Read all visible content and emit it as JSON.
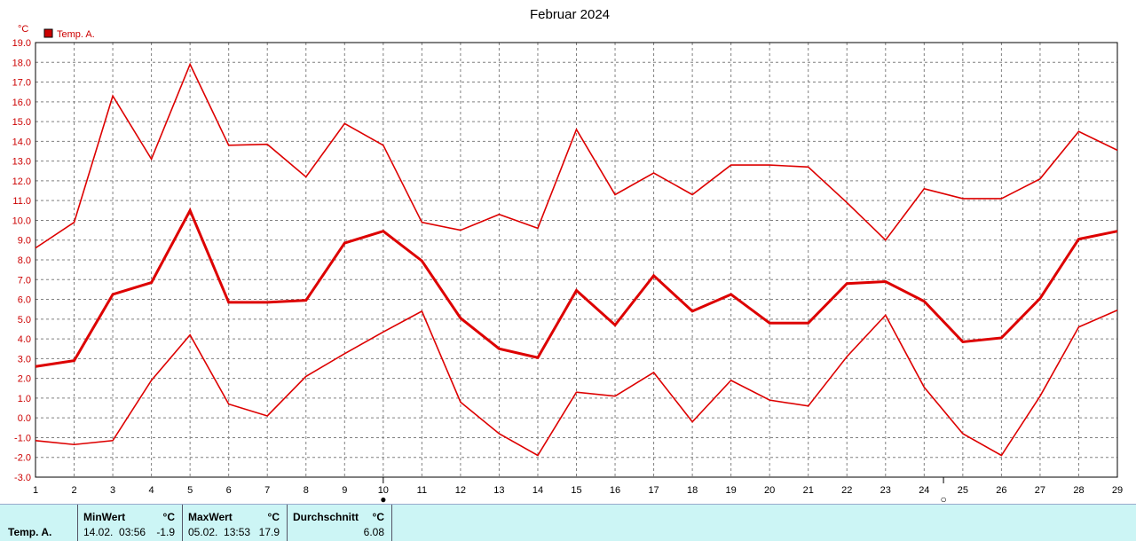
{
  "chart_data": {
    "type": "line",
    "title": "Februar 2024",
    "y_unit": "°C",
    "legend": [
      {
        "label": "Temp. A.",
        "color": "#cc0000"
      }
    ],
    "ylim": [
      -3.0,
      19.0
    ],
    "yticks": [
      "19.0",
      "18.0",
      "17.0",
      "16.0",
      "15.0",
      "14.0",
      "13.0",
      "12.0",
      "11.0",
      "10.0",
      "9.0",
      "8.0",
      "7.0",
      "6.0",
      "5.0",
      "4.0",
      "3.0",
      "2.0",
      "1.0",
      "0.0",
      "-1.0",
      "-2.0",
      "-3.0"
    ],
    "x": [
      1,
      2,
      3,
      4,
      5,
      6,
      7,
      8,
      9,
      10,
      11,
      12,
      13,
      14,
      15,
      16,
      17,
      18,
      19,
      20,
      21,
      22,
      23,
      24,
      25,
      26,
      27,
      28,
      29
    ],
    "grid": true,
    "moon_markers": [
      {
        "day": 10,
        "symbol": "●"
      },
      {
        "day": 24.5,
        "symbol": "○"
      }
    ],
    "series": [
      {
        "role": "max",
        "color": "#dd0000",
        "width": 1.6,
        "values": [
          8.6,
          9.9,
          16.3,
          13.1,
          17.9,
          13.8,
          13.85,
          12.2,
          14.9,
          13.8,
          9.9,
          9.5,
          10.3,
          9.6,
          14.6,
          11.3,
          12.4,
          11.3,
          12.8,
          12.8,
          12.7,
          10.9,
          9.0,
          11.6,
          11.1,
          11.1,
          12.1,
          14.5,
          13.55
        ]
      },
      {
        "role": "mean",
        "color": "#dd0000",
        "width": 3,
        "values": [
          2.6,
          2.9,
          6.25,
          6.85,
          10.5,
          5.85,
          5.85,
          5.95,
          8.85,
          9.45,
          7.95,
          5.05,
          3.5,
          3.05,
          6.45,
          4.7,
          7.2,
          5.4,
          6.25,
          4.8,
          4.8,
          6.8,
          6.9,
          5.9,
          3.85,
          4.05,
          6.05,
          9.05,
          9.45
        ]
      },
      {
        "role": "min",
        "color": "#dd0000",
        "width": 1.6,
        "values": [
          -1.15,
          -1.35,
          -1.15,
          1.9,
          4.2,
          0.7,
          0.1,
          2.1,
          3.25,
          4.35,
          5.4,
          0.8,
          -0.8,
          -1.9,
          1.3,
          1.1,
          2.3,
          -0.2,
          1.9,
          0.9,
          0.6,
          3.1,
          5.2,
          1.55,
          -0.8,
          -1.9,
          1.1,
          4.6,
          5.45
        ]
      }
    ]
  },
  "stats": {
    "series_label": "Temp. A.",
    "min_header": "MinWert",
    "min_unit": "°C",
    "min_time": "14.02.  03:56",
    "min_value": "-1.9",
    "max_header": "MaxWert",
    "max_unit": "°C",
    "max_time": "05.02.  13:53",
    "max_value": "17.9",
    "avg_header": "Durchschnitt",
    "avg_unit": "°C",
    "avg_value": "6.08"
  }
}
